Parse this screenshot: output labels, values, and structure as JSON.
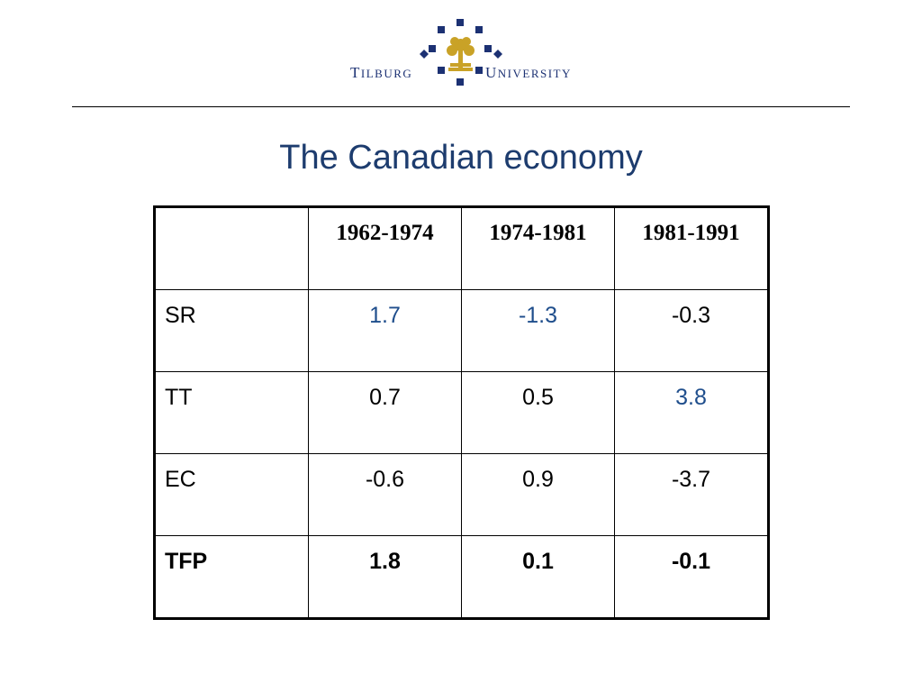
{
  "logo": {
    "left_cap": "T",
    "left_rest": "ILBURG",
    "right_cap": "U",
    "right_rest": "NIVERSITY"
  },
  "slide": {
    "title": "The Canadian economy"
  },
  "table": {
    "columns": [
      "",
      "1962-1974",
      "1974-1981",
      "1981-1991"
    ],
    "rows": [
      {
        "label": "SR",
        "values": [
          "1.7",
          "-1.3",
          "-0.3"
        ]
      },
      {
        "label": "TT",
        "values": [
          "0.7",
          "0.5",
          "3.8"
        ]
      },
      {
        "label": "EC",
        "values": [
          "-0.6",
          "0.9",
          "-3.7"
        ]
      },
      {
        "label": "TFP",
        "values": [
          "1.8",
          "0.1",
          "-0.1"
        ]
      }
    ]
  },
  "colors": {
    "title": "#1d3c6e",
    "highlight_value": "#1f4e8c",
    "logo_blue": "#1c3173",
    "logo_gold": "#c9a227"
  }
}
